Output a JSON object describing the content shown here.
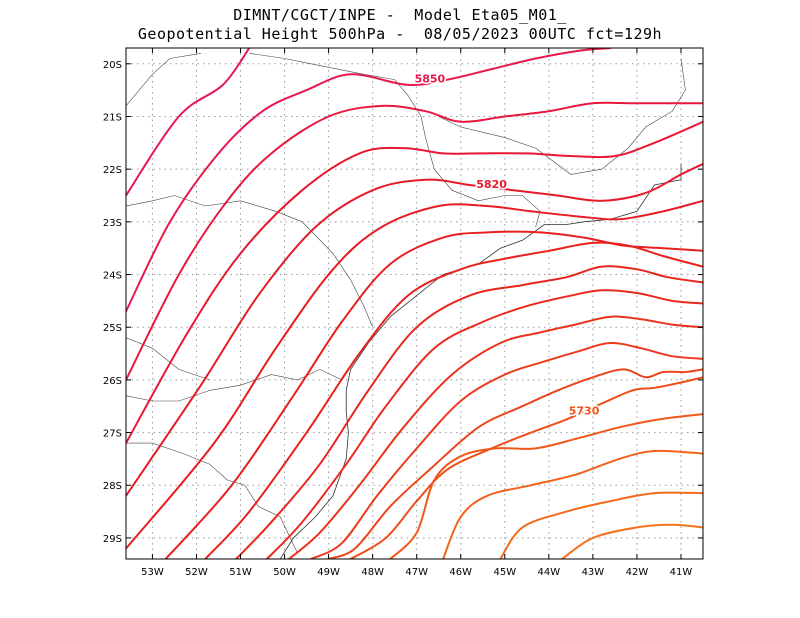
{
  "chart_data": {
    "type": "contour-map",
    "title": "DIMNT/CGCT/INPE -  Model Eta05_M01_",
    "subtitle": "Geopotential Height 500hPa -  08/05/2023 00UTC fct=129h",
    "x_ticks": [
      "53W",
      "52W",
      "51W",
      "50W",
      "49W",
      "48W",
      "47W",
      "46W",
      "45W",
      "44W",
      "43W",
      "42W",
      "41W"
    ],
    "x_values": [
      -53,
      -52,
      -51,
      -50,
      -49,
      -48,
      -47,
      -46,
      -45,
      -44,
      -43,
      -42,
      -41
    ],
    "y_ticks": [
      "20S",
      "21S",
      "22S",
      "23S",
      "24S",
      "25S",
      "26S",
      "27S",
      "28S",
      "29S"
    ],
    "y_values": [
      -20,
      -21,
      -22,
      -23,
      -24,
      -25,
      -26,
      -27,
      -28,
      -29
    ],
    "xlim": [
      -53.6,
      -40.5
    ],
    "ylim": [
      -29.4,
      -19.7
    ],
    "contour_interval": 10,
    "contour_labels": [
      {
        "text": "5850",
        "lon": -46.7,
        "lat": -20.3,
        "color": "#e8174d"
      },
      {
        "text": "5820",
        "lon": -45.3,
        "lat": -22.3,
        "color": "#e8182f"
      },
      {
        "text": "5730",
        "lon": -43.2,
        "lat": -26.6,
        "color": "#f0561b"
      }
    ],
    "contours": [
      {
        "value": 5860,
        "color": "#e6175a",
        "points": [
          [
            -53.6,
            -22.5
          ],
          [
            -52.4,
            -21.0
          ],
          [
            -51.4,
            -20.4
          ],
          [
            -50.8,
            -19.7
          ]
        ]
      },
      {
        "value": 5850,
        "color": "#e8184c",
        "points": [
          [
            -53.6,
            -24.7
          ],
          [
            -52.6,
            -23.0
          ],
          [
            -51.5,
            -21.7
          ],
          [
            -50.5,
            -20.9
          ],
          [
            -49.5,
            -20.5
          ],
          [
            -48.5,
            -20.2
          ],
          [
            -47.2,
            -20.4
          ],
          [
            -46.3,
            -20.3
          ],
          [
            -45.3,
            -20.1
          ],
          [
            -44.3,
            -19.9
          ],
          [
            -43.3,
            -19.75
          ],
          [
            -42.6,
            -19.7
          ]
        ]
      },
      {
        "value": 5840,
        "color": "#e8183e",
        "points": [
          [
            -53.6,
            -26.0
          ],
          [
            -52.4,
            -24.0
          ],
          [
            -51.3,
            -22.6
          ],
          [
            -50.3,
            -21.7
          ],
          [
            -49.0,
            -21.0
          ],
          [
            -47.8,
            -20.8
          ],
          [
            -46.8,
            -20.9
          ],
          [
            -46.0,
            -21.1
          ],
          [
            -45.0,
            -21.0
          ],
          [
            -44.0,
            -20.9
          ],
          [
            -43.0,
            -20.75
          ],
          [
            -42.0,
            -20.75
          ],
          [
            -40.5,
            -20.75
          ]
        ]
      },
      {
        "value": 5830,
        "color": "#e81832",
        "points": [
          [
            -53.6,
            -27.2
          ],
          [
            -52.2,
            -25.1
          ],
          [
            -51.0,
            -23.6
          ],
          [
            -49.6,
            -22.4
          ],
          [
            -48.3,
            -21.7
          ],
          [
            -47.3,
            -21.6
          ],
          [
            -46.4,
            -21.7
          ],
          [
            -45.6,
            -21.7
          ],
          [
            -44.5,
            -21.7
          ],
          [
            -43.5,
            -21.75
          ],
          [
            -42.5,
            -21.75
          ],
          [
            -41.6,
            -21.5
          ],
          [
            -40.5,
            -21.1
          ]
        ]
      },
      {
        "value": 5820,
        "color": "#e71a28",
        "points": [
          [
            -53.6,
            -28.2
          ],
          [
            -51.9,
            -26.1
          ],
          [
            -50.6,
            -24.4
          ],
          [
            -49.3,
            -23.1
          ],
          [
            -48.0,
            -22.4
          ],
          [
            -46.8,
            -22.2
          ],
          [
            -45.8,
            -22.3
          ],
          [
            -44.8,
            -22.4
          ],
          [
            -43.8,
            -22.5
          ],
          [
            -42.8,
            -22.6
          ],
          [
            -41.8,
            -22.45
          ],
          [
            -41.0,
            -22.1
          ],
          [
            -40.5,
            -21.9
          ]
        ]
      },
      {
        "value": 5810,
        "color": "#e81c22",
        "points": [
          [
            -53.6,
            -29.2
          ],
          [
            -51.6,
            -27.2
          ],
          [
            -50.2,
            -25.4
          ],
          [
            -48.9,
            -23.9
          ],
          [
            -47.8,
            -23.1
          ],
          [
            -46.5,
            -22.7
          ],
          [
            -45.4,
            -22.7
          ],
          [
            -44.4,
            -22.8
          ],
          [
            -43.3,
            -22.9
          ],
          [
            -42.4,
            -22.95
          ],
          [
            -41.4,
            -22.8
          ],
          [
            -40.5,
            -22.6
          ]
        ]
      },
      {
        "value": 5800,
        "color": "#e81f1f",
        "points": [
          [
            -52.7,
            -29.4
          ],
          [
            -51.2,
            -28.0
          ],
          [
            -49.8,
            -26.3
          ],
          [
            -48.7,
            -24.9
          ],
          [
            -47.6,
            -23.8
          ],
          [
            -46.4,
            -23.3
          ],
          [
            -45.4,
            -23.2
          ],
          [
            -44.2,
            -23.2
          ],
          [
            -43.2,
            -23.3
          ],
          [
            -42.3,
            -23.45
          ],
          [
            -41.4,
            -23.5
          ],
          [
            -40.5,
            -23.55
          ]
        ]
      },
      {
        "value": 5790,
        "color": "#e8221d",
        "points": [
          [
            -51.8,
            -29.4
          ],
          [
            -50.8,
            -28.5
          ],
          [
            -49.5,
            -27.0
          ],
          [
            -48.3,
            -25.5
          ],
          [
            -47.2,
            -24.4
          ],
          [
            -46.0,
            -23.9
          ],
          [
            -45.0,
            -23.7
          ],
          [
            -44.0,
            -23.55
          ],
          [
            -43.0,
            -23.4
          ],
          [
            -42.2,
            -23.45
          ],
          [
            -41.4,
            -23.65
          ],
          [
            -40.5,
            -23.85
          ]
        ]
      },
      {
        "value": 5780,
        "color": "#e9261c",
        "points": [
          [
            -51.1,
            -29.4
          ],
          [
            -50.3,
            -28.7
          ],
          [
            -49.2,
            -27.6
          ],
          [
            -48.1,
            -26.2
          ],
          [
            -47.0,
            -25.0
          ],
          [
            -45.8,
            -24.4
          ],
          [
            -44.6,
            -24.2
          ],
          [
            -43.6,
            -24.05
          ],
          [
            -42.8,
            -23.85
          ],
          [
            -42.0,
            -23.9
          ],
          [
            -41.3,
            -24.05
          ],
          [
            -40.5,
            -24.15
          ]
        ]
      },
      {
        "value": 5770,
        "color": "#ea2a1c",
        "points": [
          [
            -50.4,
            -29.4
          ],
          [
            -49.6,
            -28.7
          ],
          [
            -48.6,
            -27.6
          ],
          [
            -47.7,
            -26.5
          ],
          [
            -46.6,
            -25.4
          ],
          [
            -45.5,
            -24.9
          ],
          [
            -44.5,
            -24.6
          ],
          [
            -43.5,
            -24.4
          ],
          [
            -42.8,
            -24.3
          ],
          [
            -42.0,
            -24.35
          ],
          [
            -41.2,
            -24.5
          ],
          [
            -40.5,
            -24.55
          ]
        ]
      },
      {
        "value": 5760,
        "color": "#eb321c",
        "points": [
          [
            -49.9,
            -29.4
          ],
          [
            -49.2,
            -28.9
          ],
          [
            -48.3,
            -28.0
          ],
          [
            -47.3,
            -26.9
          ],
          [
            -46.2,
            -25.9
          ],
          [
            -45.1,
            -25.3
          ],
          [
            -44.2,
            -25.1
          ],
          [
            -43.4,
            -24.95
          ],
          [
            -42.6,
            -24.8
          ],
          [
            -41.9,
            -24.85
          ],
          [
            -41.2,
            -24.95
          ],
          [
            -40.5,
            -25.0
          ]
        ]
      },
      {
        "value": 5750,
        "color": "#ec3a1c",
        "points": [
          [
            -49.4,
            -29.4
          ],
          [
            -48.7,
            -29.1
          ],
          [
            -47.9,
            -28.2
          ],
          [
            -47.0,
            -27.3
          ],
          [
            -46.0,
            -26.4
          ],
          [
            -45.0,
            -25.9
          ],
          [
            -44.1,
            -25.65
          ],
          [
            -43.3,
            -25.45
          ],
          [
            -42.6,
            -25.3
          ],
          [
            -41.9,
            -25.4
          ],
          [
            -41.2,
            -25.55
          ],
          [
            -40.5,
            -25.6
          ]
        ]
      },
      {
        "value": 5740,
        "color": "#ed441c",
        "points": [
          [
            -49.0,
            -29.4
          ],
          [
            -48.4,
            -29.2
          ],
          [
            -47.6,
            -28.4
          ],
          [
            -46.7,
            -27.7
          ],
          [
            -45.6,
            -26.9
          ],
          [
            -44.6,
            -26.5
          ],
          [
            -43.8,
            -26.2
          ],
          [
            -43.0,
            -25.95
          ],
          [
            -42.3,
            -25.8
          ],
          [
            -41.8,
            -25.95
          ],
          [
            -41.4,
            -25.85
          ],
          [
            -40.9,
            -25.85
          ],
          [
            -40.5,
            -25.8
          ]
        ]
      },
      {
        "value": 5730,
        "color": "#ef4e1b",
        "points": [
          [
            -48.5,
            -29.4
          ],
          [
            -47.7,
            -29.0
          ],
          [
            -47.0,
            -28.3
          ],
          [
            -46.3,
            -27.7
          ],
          [
            -45.3,
            -27.3
          ],
          [
            -44.4,
            -27.0
          ],
          [
            -43.6,
            -26.75
          ],
          [
            -42.8,
            -26.45
          ],
          [
            -42.1,
            -26.2
          ],
          [
            -41.6,
            -26.15
          ],
          [
            -41.0,
            -26.05
          ],
          [
            -40.5,
            -25.95
          ]
        ]
      },
      {
        "value": 5720,
        "color": "#f0581b",
        "points": [
          [
            -47.6,
            -29.4
          ],
          [
            -47.0,
            -28.9
          ],
          [
            -46.6,
            -27.9
          ],
          [
            -46.0,
            -27.45
          ],
          [
            -45.2,
            -27.3
          ],
          [
            -44.3,
            -27.3
          ],
          [
            -43.3,
            -27.1
          ],
          [
            -42.4,
            -26.9
          ],
          [
            -41.5,
            -26.75
          ],
          [
            -40.5,
            -26.65
          ]
        ]
      },
      {
        "value": 5710,
        "color": "#f1621b",
        "points": [
          [
            -46.4,
            -29.4
          ],
          [
            -46.0,
            -28.6
          ],
          [
            -45.4,
            -28.2
          ],
          [
            -44.4,
            -28.0
          ],
          [
            -43.4,
            -27.8
          ],
          [
            -42.4,
            -27.5
          ],
          [
            -41.6,
            -27.35
          ],
          [
            -40.5,
            -27.4
          ]
        ]
      },
      {
        "value": 5700,
        "color": "#f26a1b",
        "points": [
          [
            -45.1,
            -29.4
          ],
          [
            -44.6,
            -28.8
          ],
          [
            -43.6,
            -28.5
          ],
          [
            -42.6,
            -28.3
          ],
          [
            -41.6,
            -28.15
          ],
          [
            -40.5,
            -28.15
          ]
        ]
      },
      {
        "value": 5690,
        "color": "#f3741b",
        "points": [
          [
            -43.7,
            -29.4
          ],
          [
            -43.0,
            -29.0
          ],
          [
            -42.0,
            -28.8
          ],
          [
            -41.2,
            -28.75
          ],
          [
            -40.5,
            -28.8
          ]
        ]
      }
    ],
    "coastline": [
      [
        -41.0,
        -21.9
      ],
      [
        -41.0,
        -22.2
      ],
      [
        -41.6,
        -22.3
      ],
      [
        -42.0,
        -22.8
      ],
      [
        -42.6,
        -22.95
      ],
      [
        -43.2,
        -23.0
      ],
      [
        -43.6,
        -23.05
      ],
      [
        -44.1,
        -23.05
      ],
      [
        -44.6,
        -23.35
      ],
      [
        -45.1,
        -23.5
      ],
      [
        -45.6,
        -23.8
      ],
      [
        -46.4,
        -24.0
      ],
      [
        -47.0,
        -24.4
      ],
      [
        -47.6,
        -24.8
      ],
      [
        -48.1,
        -25.3
      ],
      [
        -48.5,
        -25.8
      ],
      [
        -48.6,
        -26.2
      ],
      [
        -48.6,
        -26.6
      ],
      [
        -48.55,
        -27.0
      ],
      [
        -48.6,
        -27.5
      ],
      [
        -48.9,
        -28.2
      ],
      [
        -49.3,
        -28.6
      ],
      [
        -49.8,
        -29.0
      ],
      [
        -50.1,
        -29.4
      ]
    ],
    "borders": [
      [
        [
          -53.6,
          -20.8
        ],
        [
          -53.0,
          -20.2
        ],
        [
          -52.6,
          -19.9
        ],
        [
          -51.9,
          -19.8
        ]
      ],
      [
        [
          -50.8,
          -19.8
        ],
        [
          -50.0,
          -19.9
        ],
        [
          -49.4,
          -20.0
        ],
        [
          -48.8,
          -20.1
        ],
        [
          -48.2,
          -20.2
        ],
        [
          -47.5,
          -20.3
        ],
        [
          -47.2,
          -20.6
        ],
        [
          -46.9,
          -21.0
        ],
        [
          -46.8,
          -21.4
        ],
        [
          -46.6,
          -22.0
        ],
        [
          -46.2,
          -22.4
        ],
        [
          -45.6,
          -22.6
        ],
        [
          -45.0,
          -22.5
        ],
        [
          -44.6,
          -22.5
        ],
        [
          -44.2,
          -22.8
        ],
        [
          -44.3,
          -23.1
        ]
      ],
      [
        [
          -46.5,
          -21.0
        ],
        [
          -46.0,
          -21.2
        ],
        [
          -45.0,
          -21.4
        ],
        [
          -44.3,
          -21.6
        ],
        [
          -43.5,
          -22.1
        ],
        [
          -42.8,
          -22.0
        ],
        [
          -42.2,
          -21.6
        ],
        [
          -41.8,
          -21.2
        ],
        [
          -41.2,
          -20.9
        ],
        [
          -40.9,
          -20.5
        ],
        [
          -41.0,
          -19.9
        ]
      ],
      [
        [
          -53.6,
          -22.7
        ],
        [
          -53.0,
          -22.6
        ],
        [
          -52.5,
          -22.5
        ],
        [
          -51.8,
          -22.7
        ],
        [
          -51.0,
          -22.6
        ],
        [
          -50.2,
          -22.8
        ],
        [
          -49.6,
          -23.0
        ],
        [
          -48.9,
          -23.6
        ],
        [
          -48.5,
          -24.1
        ],
        [
          -48.2,
          -24.6
        ],
        [
          -48.0,
          -25.0
        ]
      ],
      [
        [
          -53.6,
          -26.3
        ],
        [
          -53.0,
          -26.4
        ],
        [
          -52.4,
          -26.4
        ],
        [
          -51.7,
          -26.2
        ],
        [
          -51.0,
          -26.1
        ],
        [
          -50.3,
          -25.9
        ],
        [
          -49.7,
          -26.0
        ],
        [
          -49.2,
          -25.8
        ],
        [
          -48.7,
          -26.0
        ]
      ],
      [
        [
          -53.6,
          -27.2
        ],
        [
          -53.0,
          -27.2
        ],
        [
          -52.3,
          -27.4
        ],
        [
          -51.7,
          -27.6
        ],
        [
          -51.3,
          -27.9
        ],
        [
          -50.9,
          -28.0
        ],
        [
          -50.6,
          -28.4
        ],
        [
          -50.1,
          -28.6
        ],
        [
          -49.7,
          -29.3
        ]
      ],
      [
        [
          -53.6,
          -25.2
        ],
        [
          -53.0,
          -25.4
        ],
        [
          -52.4,
          -25.8
        ],
        [
          -51.7,
          -26.0
        ]
      ]
    ]
  }
}
